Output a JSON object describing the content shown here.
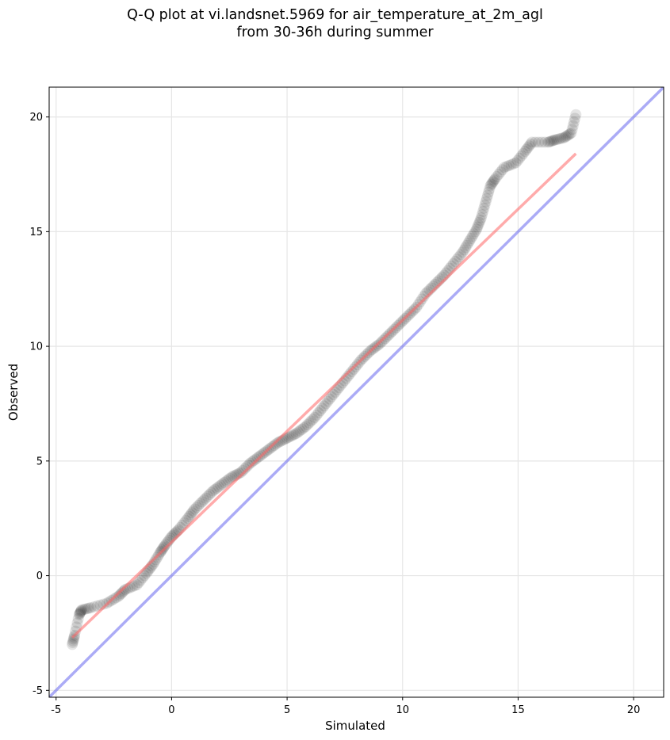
{
  "title_line1": "Q-Q plot at vi.landsnet.5969 for air_temperature_at_2m_agl",
  "title_line2": "from 30-36h during summer",
  "chart_data": {
    "type": "scatter",
    "xlabel": "Simulated",
    "ylabel": "Observed",
    "xlim": [
      -5.3,
      21.3
    ],
    "ylim": [
      -5.3,
      21.3
    ],
    "xticks": [
      -5,
      0,
      5,
      10,
      15,
      20
    ],
    "yticks": [
      -5,
      0,
      5,
      10,
      15,
      20
    ],
    "grid": true,
    "points": [
      [
        -4.3,
        -3.0
      ],
      [
        -4.2,
        -2.6
      ],
      [
        -4.0,
        -1.7
      ],
      [
        -3.9,
        -1.5
      ],
      [
        -3.5,
        -1.4
      ],
      [
        -2.8,
        -1.2
      ],
      [
        -2.3,
        -0.9
      ],
      [
        -2.0,
        -0.6
      ],
      [
        -1.5,
        -0.4
      ],
      [
        -1.1,
        0.1
      ],
      [
        -0.8,
        0.5
      ],
      [
        -0.5,
        1.0
      ],
      [
        -0.3,
        1.3
      ],
      [
        0.0,
        1.7
      ],
      [
        0.3,
        2.0
      ],
      [
        0.7,
        2.5
      ],
      [
        1.0,
        2.9
      ],
      [
        1.4,
        3.3
      ],
      [
        1.8,
        3.7
      ],
      [
        2.2,
        4.0
      ],
      [
        2.6,
        4.3
      ],
      [
        3.0,
        4.5
      ],
      [
        3.4,
        4.9
      ],
      [
        3.8,
        5.2
      ],
      [
        4.2,
        5.5
      ],
      [
        4.6,
        5.8
      ],
      [
        5.0,
        6.0
      ],
      [
        5.4,
        6.2
      ],
      [
        5.8,
        6.5
      ],
      [
        6.2,
        6.9
      ],
      [
        6.6,
        7.4
      ],
      [
        7.0,
        7.9
      ],
      [
        7.4,
        8.4
      ],
      [
        7.8,
        8.9
      ],
      [
        8.2,
        9.4
      ],
      [
        8.6,
        9.8
      ],
      [
        9.0,
        10.1
      ],
      [
        9.4,
        10.5
      ],
      [
        9.8,
        10.9
      ],
      [
        10.2,
        11.3
      ],
      [
        10.6,
        11.7
      ],
      [
        11.0,
        12.3
      ],
      [
        11.4,
        12.7
      ],
      [
        11.8,
        13.1
      ],
      [
        12.2,
        13.6
      ],
      [
        12.6,
        14.1
      ],
      [
        12.9,
        14.6
      ],
      [
        13.2,
        15.1
      ],
      [
        13.4,
        15.6
      ],
      [
        13.6,
        16.3
      ],
      [
        13.8,
        17.0
      ],
      [
        14.0,
        17.3
      ],
      [
        14.4,
        17.8
      ],
      [
        14.9,
        18.0
      ],
      [
        15.3,
        18.5
      ],
      [
        15.6,
        18.9
      ],
      [
        16.3,
        18.9
      ],
      [
        16.6,
        19.0
      ],
      [
        17.0,
        19.1
      ],
      [
        17.3,
        19.3
      ],
      [
        17.5,
        20.1
      ]
    ],
    "fit_line": [
      [
        -4.3,
        -2.7
      ],
      [
        17.5,
        18.4
      ]
    ],
    "identity_line": [
      [
        -5.3,
        -5.3
      ],
      [
        21.3,
        21.3
      ]
    ],
    "colors": {
      "points": "#000000",
      "fit": "#ff6666",
      "identity": "#6666ee"
    }
  }
}
